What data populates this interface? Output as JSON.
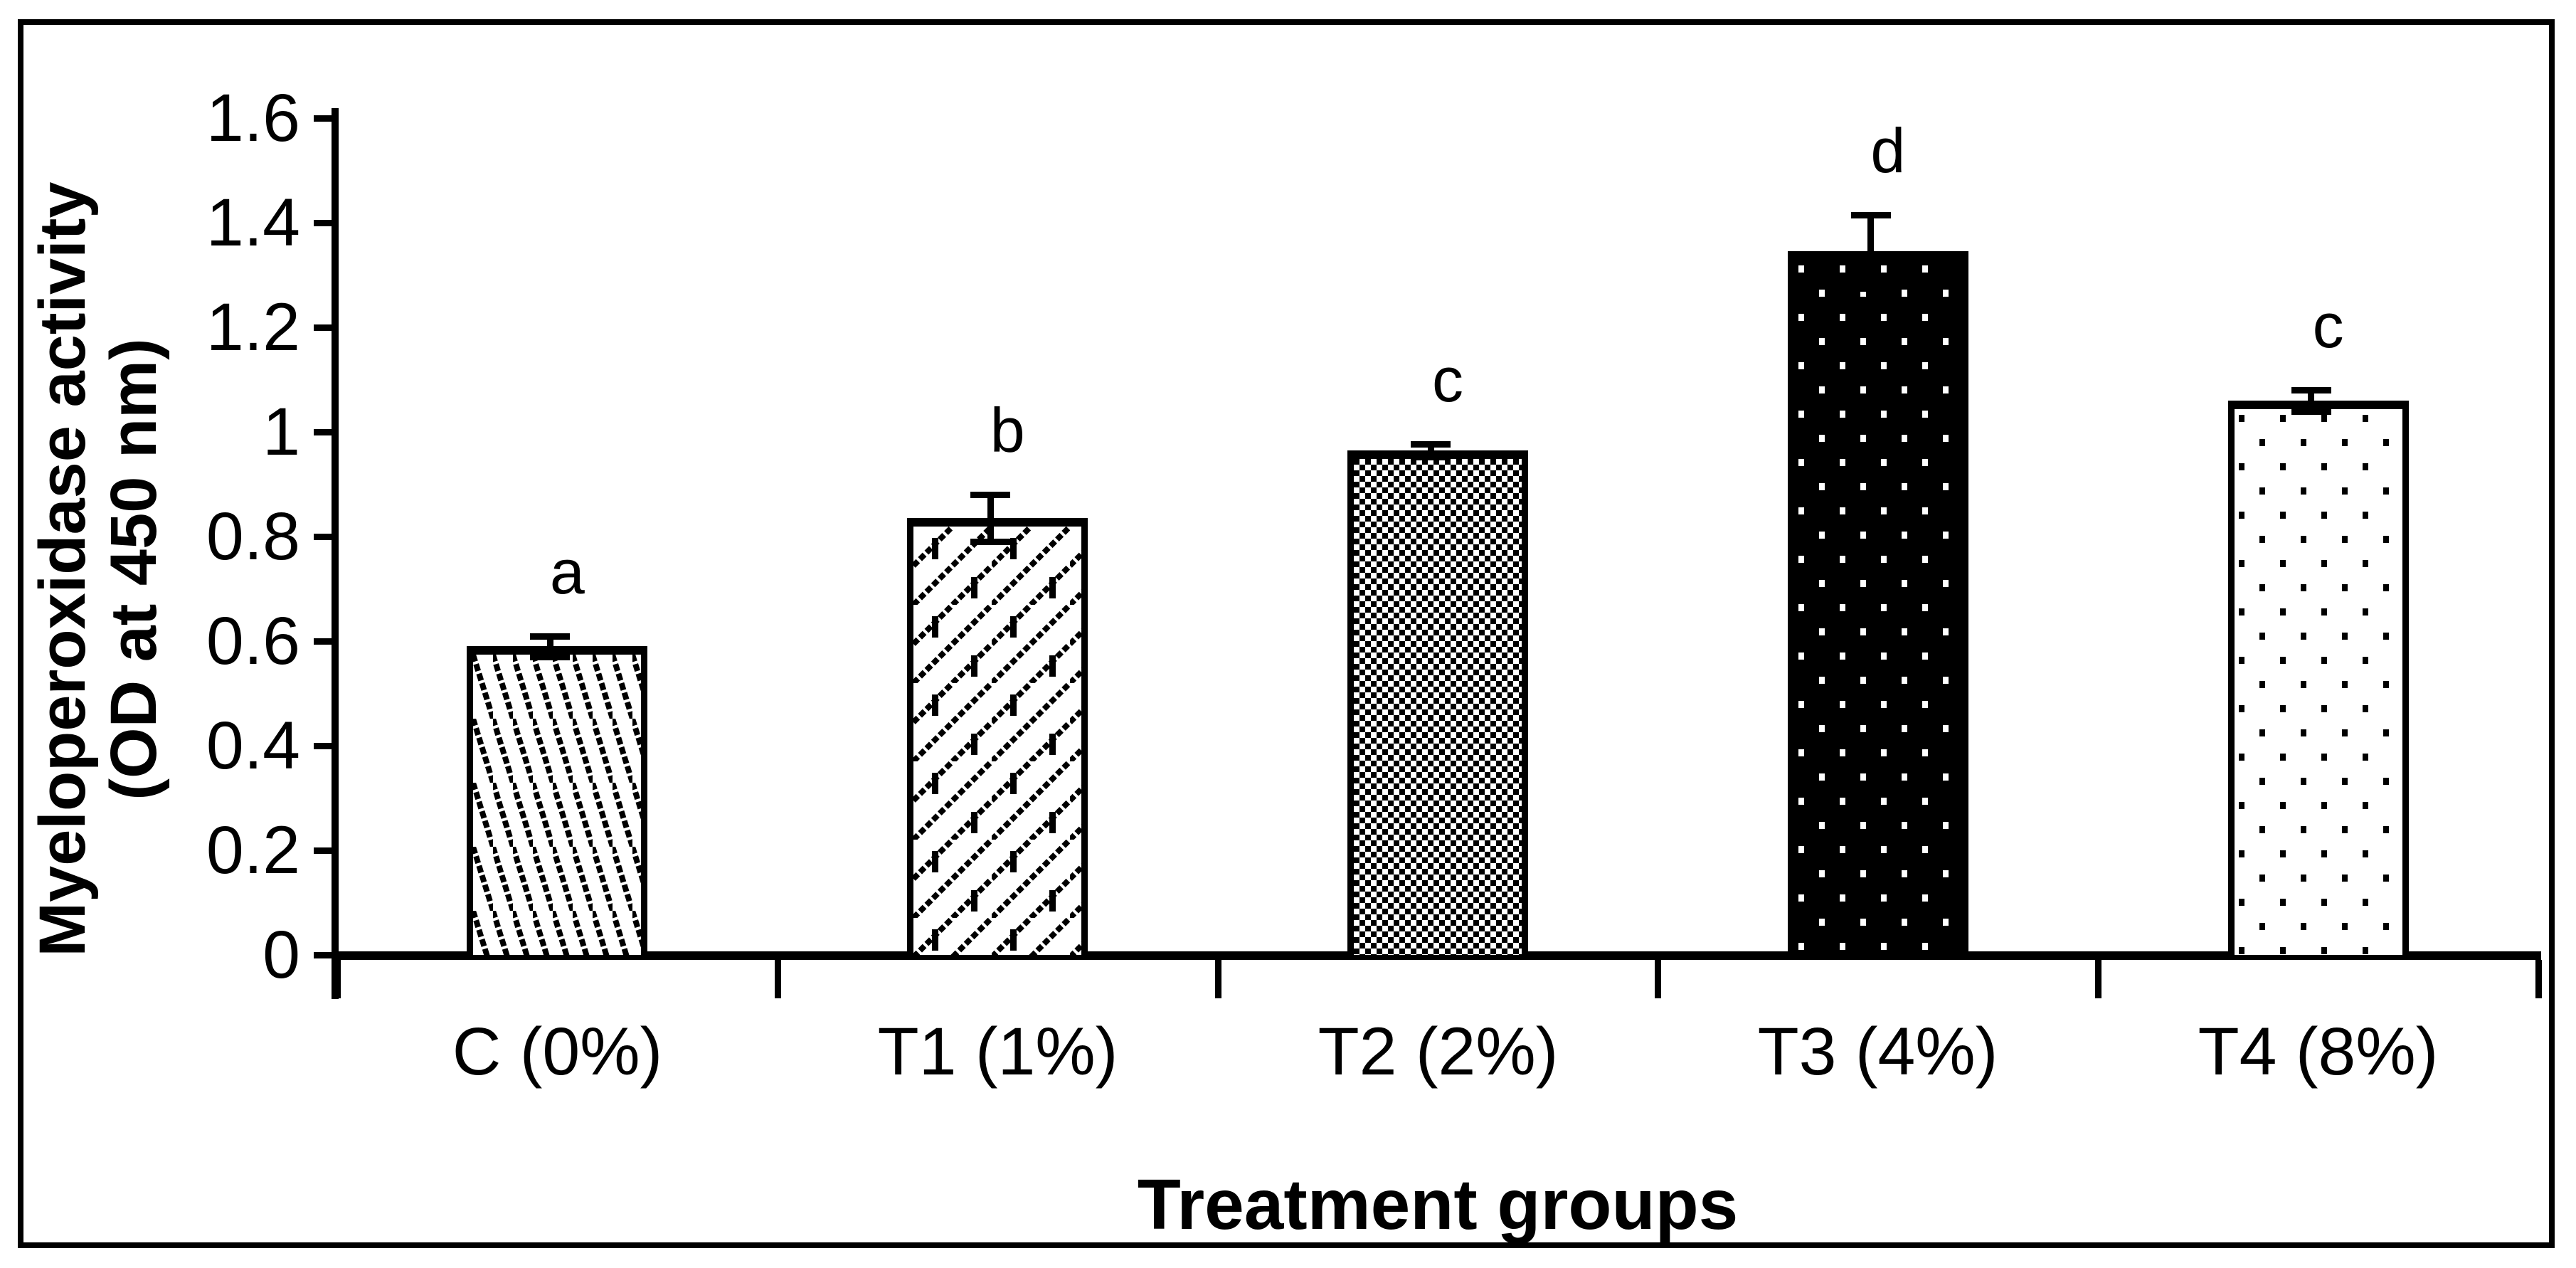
{
  "figure": {
    "background": "#ffffff",
    "border_color": "#000000",
    "axis_color": "#000000"
  },
  "chart_data": {
    "type": "bar",
    "categories": [
      "C (0%)",
      "T1 (1%)",
      "T2 (2%)",
      "T3 (4%)",
      "T4 (8%)"
    ],
    "values": [
      0.59,
      0.835,
      0.965,
      1.345,
      1.06
    ],
    "errors": [
      0.02,
      0.045,
      0.012,
      0.07,
      0.02
    ],
    "sig_letters": [
      "a",
      "b",
      "c",
      "d",
      "c"
    ],
    "bar_styles": [
      "diagonal-hatch-down",
      "diagonal-brick",
      "checkerboard",
      "black-with-white-dots",
      "white-with-black-dots"
    ],
    "xlabel": "Treatment groups",
    "ylabel_lines": [
      "Myeloperoxidase activity",
      "(OD at 450 nm)"
    ],
    "ylim": [
      0,
      1.6
    ],
    "ytick_values": [
      0,
      0.2,
      0.4,
      0.6,
      0.8,
      1,
      1.2,
      1.4,
      1.6
    ],
    "ytick_labels": [
      "0",
      "0.2",
      "0.4",
      "0.6",
      "0.8",
      "1",
      "1.2",
      "1.4",
      "1.6"
    ],
    "grid": false,
    "legend": null,
    "bar_outline_color": "#000000",
    "error_bar_color": "#000000"
  }
}
